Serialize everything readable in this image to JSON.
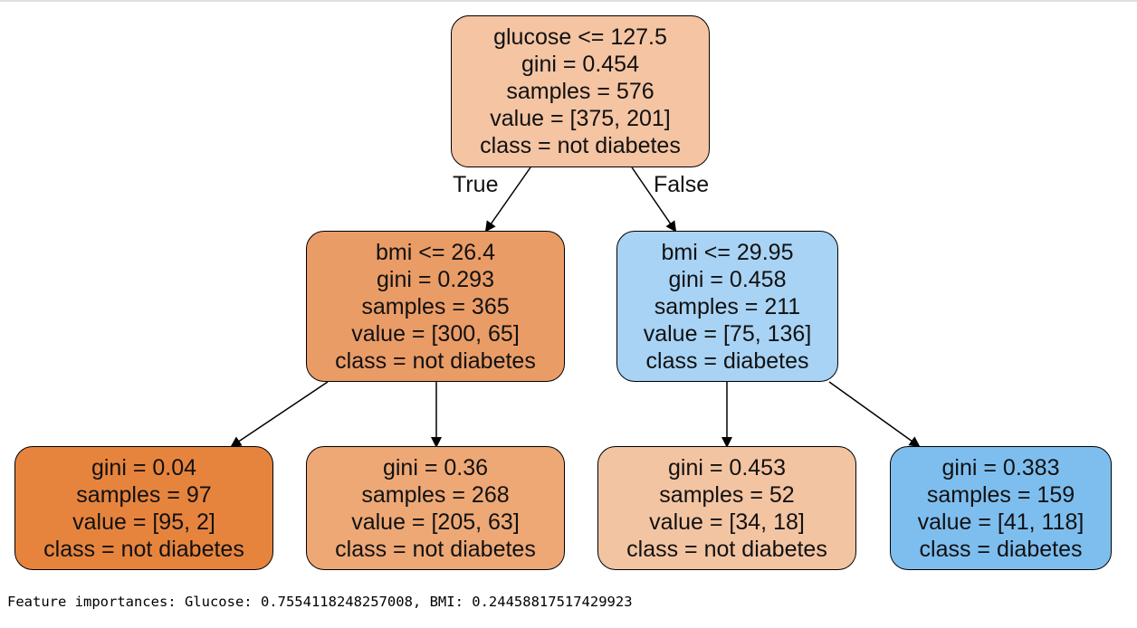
{
  "tree": {
    "nodes": [
      {
        "id": "root",
        "lines": [
          "glucose <= 127.5",
          "gini = 0.454",
          "samples = 576",
          "value = [375, 201]",
          "class = not diabetes"
        ],
        "fill": "#f4c4a3"
      },
      {
        "id": "left",
        "lines": [
          "bmi <= 26.4",
          "gini = 0.293",
          "samples = 365",
          "value = [300, 65]",
          "class = not diabetes"
        ],
        "fill": "#ea9c67"
      },
      {
        "id": "right",
        "lines": [
          "bmi <= 29.95",
          "gini = 0.458",
          "samples = 211",
          "value = [75, 136]",
          "class = diabetes"
        ],
        "fill": "#a8d3f4"
      },
      {
        "id": "leaf-ll",
        "lines": [
          "gini = 0.04",
          "samples = 97",
          "value = [95, 2]",
          "class = not diabetes"
        ],
        "fill": "#e6843e"
      },
      {
        "id": "leaf-lr",
        "lines": [
          "gini = 0.36",
          "samples = 268",
          "value = [205, 63]",
          "class = not diabetes"
        ],
        "fill": "#eda876"
      },
      {
        "id": "leaf-rl",
        "lines": [
          "gini = 0.453",
          "samples = 52",
          "value = [34, 18]",
          "class = not diabetes"
        ],
        "fill": "#f3c4a2"
      },
      {
        "id": "leaf-rr",
        "lines": [
          "gini = 0.383",
          "samples = 159",
          "value = [41, 118]",
          "class = diabetes"
        ],
        "fill": "#7ebeef"
      }
    ],
    "edges": [
      {
        "from": "root",
        "to": "left",
        "label": "True"
      },
      {
        "from": "root",
        "to": "right",
        "label": "False"
      },
      {
        "from": "left",
        "to": "leaf-ll",
        "label": ""
      },
      {
        "from": "left",
        "to": "leaf-lr",
        "label": ""
      },
      {
        "from": "right",
        "to": "leaf-rl",
        "label": ""
      },
      {
        "from": "right",
        "to": "leaf-rr",
        "label": ""
      }
    ]
  },
  "footer": {
    "text": "Feature importances: Glucose: 0.7554118248257008, BMI: 0.24458817517429923"
  }
}
